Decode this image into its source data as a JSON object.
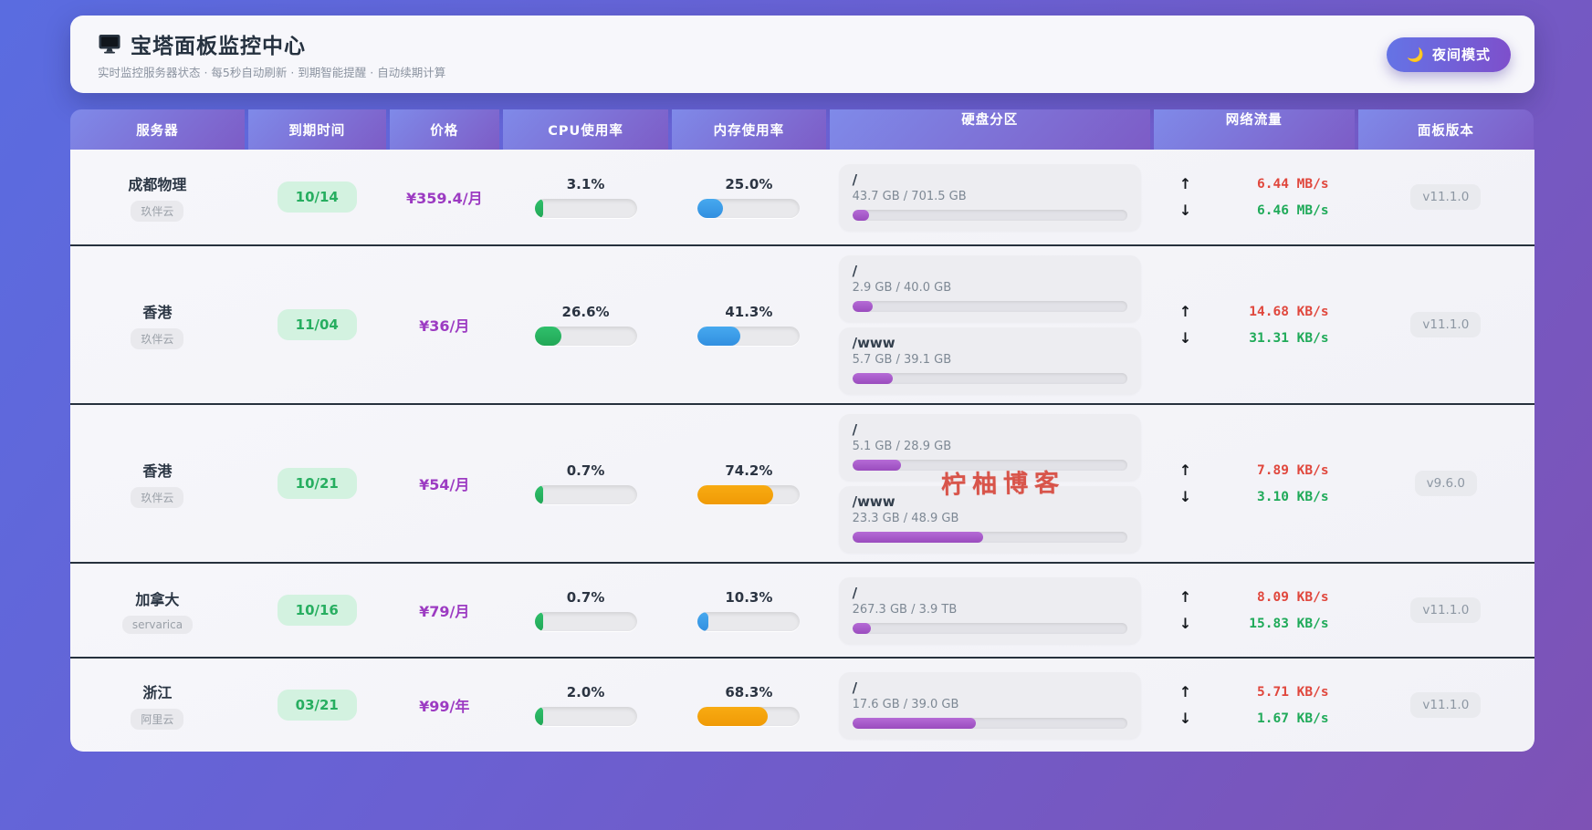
{
  "header": {
    "title": "宝塔面板监控中心",
    "subtitle": "实时监控服务器状态 · 每5秒自动刷新 · 到期智能提醒 · 自动续期计算",
    "night_mode_label": "夜间模式",
    "moon_icon": "🌙"
  },
  "icons": {
    "up_arrow": "↑",
    "down_arrow": "↓"
  },
  "columns": [
    "服务器",
    "到期时间",
    "价格",
    "CPU使用率",
    "内存使用率",
    "硬盘分区",
    "网络流量",
    "面板版本"
  ],
  "watermark": "柠柚博客",
  "colors": {
    "cpu_bar": "#27b563",
    "memory_bar_low": "#3da2ec",
    "memory_bar_high": "#f5a20d",
    "disk_bar": "#a958c8",
    "upload_text": "#e0473d",
    "download_text": "#1faa59",
    "expiry_badge_bg": "#d3f2e0",
    "expiry_badge_text": "#27ae60",
    "price_text": "#9c3bc2"
  },
  "servers": [
    {
      "name": "成都物理",
      "provider": "玖伴云",
      "expiry": "10/14",
      "price": "¥359.4/月",
      "cpu": {
        "label": "3.1%",
        "percent": 3.1
      },
      "memory": {
        "label": "25.0%",
        "percent": 25.0,
        "color": "blue"
      },
      "disks": [
        {
          "mount": "/",
          "usage": "43.7 GB / 701.5 GB",
          "percent": 6.2
        }
      ],
      "network": {
        "up": "6.44 MB/s",
        "down": "6.46 MB/s"
      },
      "version": "v11.1.0",
      "watermark": false
    },
    {
      "name": "香港",
      "provider": "玖伴云",
      "expiry": "11/04",
      "price": "¥36/月",
      "cpu": {
        "label": "26.6%",
        "percent": 26.6
      },
      "memory": {
        "label": "41.3%",
        "percent": 41.3,
        "color": "blue"
      },
      "disks": [
        {
          "mount": "/",
          "usage": "2.9 GB / 40.0 GB",
          "percent": 7.3
        },
        {
          "mount": "/www",
          "usage": "5.7 GB / 39.1 GB",
          "percent": 14.6
        }
      ],
      "network": {
        "up": "14.68 KB/s",
        "down": "31.31 KB/s"
      },
      "version": "v11.1.0",
      "watermark": false
    },
    {
      "name": "香港",
      "provider": "玖伴云",
      "expiry": "10/21",
      "price": "¥54/月",
      "cpu": {
        "label": "0.7%",
        "percent": 0.7
      },
      "memory": {
        "label": "74.2%",
        "percent": 74.2,
        "color": "orange"
      },
      "disks": [
        {
          "mount": "/",
          "usage": "5.1 GB / 28.9 GB",
          "percent": 17.6
        },
        {
          "mount": "/www",
          "usage": "23.3 GB / 48.9 GB",
          "percent": 47.6
        }
      ],
      "network": {
        "up": "7.89 KB/s",
        "down": "3.10 KB/s"
      },
      "version": "v9.6.0",
      "watermark": true
    },
    {
      "name": "加拿大",
      "provider": "servarica",
      "expiry": "10/16",
      "price": "¥79/月",
      "cpu": {
        "label": "0.7%",
        "percent": 0.7
      },
      "memory": {
        "label": "10.3%",
        "percent": 10.3,
        "color": "blue"
      },
      "disks": [
        {
          "mount": "/",
          "usage": "267.3 GB / 3.9 TB",
          "percent": 6.7
        }
      ],
      "network": {
        "up": "8.09 KB/s",
        "down": "15.83 KB/s"
      },
      "version": "v11.1.0",
      "watermark": false
    },
    {
      "name": "浙江",
      "provider": "阿里云",
      "expiry": "03/21",
      "price": "¥99/年",
      "cpu": {
        "label": "2.0%",
        "percent": 2.0
      },
      "memory": {
        "label": "68.3%",
        "percent": 68.3,
        "color": "orange"
      },
      "disks": [
        {
          "mount": "/",
          "usage": "17.6 GB / 39.0 GB",
          "percent": 45.1
        }
      ],
      "network": {
        "up": "5.71 KB/s",
        "down": "1.67 KB/s"
      },
      "version": "v11.1.0",
      "watermark": false
    }
  ]
}
